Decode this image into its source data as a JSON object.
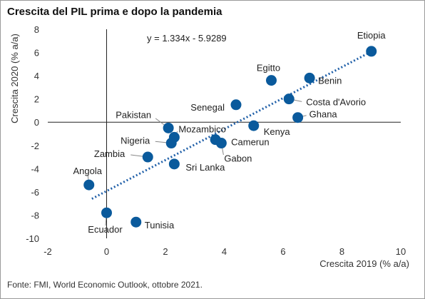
{
  "title": "Crescita del PIL prima e dopo la pandemia",
  "source": "Fonte: FMI, World Economic Outlook, ottobre 2021.",
  "chart_data": {
    "type": "scatter",
    "xlabel": "Crescita 2019 (% a/a)",
    "ylabel": "Crescita 2020 (% a/a)",
    "xlim": [
      -2,
      10
    ],
    "ylim": [
      -10,
      8
    ],
    "xticks": [
      -2,
      0,
      2,
      4,
      6,
      8,
      10
    ],
    "yticks": [
      -10,
      -8,
      -6,
      -4,
      -2,
      0,
      2,
      4,
      6,
      8
    ],
    "trendline": {
      "slope": 1.334,
      "intercept": -5.9289,
      "label": "y = 1.334x - 5.9289",
      "x_range": [
        -0.5,
        9.0
      ]
    },
    "marker_color": "#0a5a9c",
    "points": [
      {
        "name": "Etiopia",
        "x": 9.0,
        "y": 6.1
      },
      {
        "name": "Egitto",
        "x": 5.6,
        "y": 3.6
      },
      {
        "name": "Benin",
        "x": 6.9,
        "y": 3.8
      },
      {
        "name": "Costa d'Avorio",
        "x": 6.2,
        "y": 2.0
      },
      {
        "name": "Senegal",
        "x": 4.4,
        "y": 1.5
      },
      {
        "name": "Ghana",
        "x": 6.5,
        "y": 0.4
      },
      {
        "name": "Pakistan",
        "x": 2.1,
        "y": -0.5
      },
      {
        "name": "Mozambico",
        "x": 2.3,
        "y": -1.3
      },
      {
        "name": "Kenya",
        "x": 5.0,
        "y": -0.3
      },
      {
        "name": "Nigeria",
        "x": 2.2,
        "y": -1.8
      },
      {
        "name": "Camerun",
        "x": 3.7,
        "y": -1.5
      },
      {
        "name": "Gabon",
        "x": 3.9,
        "y": -1.8
      },
      {
        "name": "Zambia",
        "x": 1.4,
        "y": -3.0
      },
      {
        "name": "Sri Lanka",
        "x": 2.3,
        "y": -3.6
      },
      {
        "name": "Angola",
        "x": -0.6,
        "y": -5.4
      },
      {
        "name": "Ecuador",
        "x": 0.0,
        "y": -7.8
      },
      {
        "name": "Tunisia",
        "x": 1.0,
        "y": -8.6
      }
    ]
  }
}
